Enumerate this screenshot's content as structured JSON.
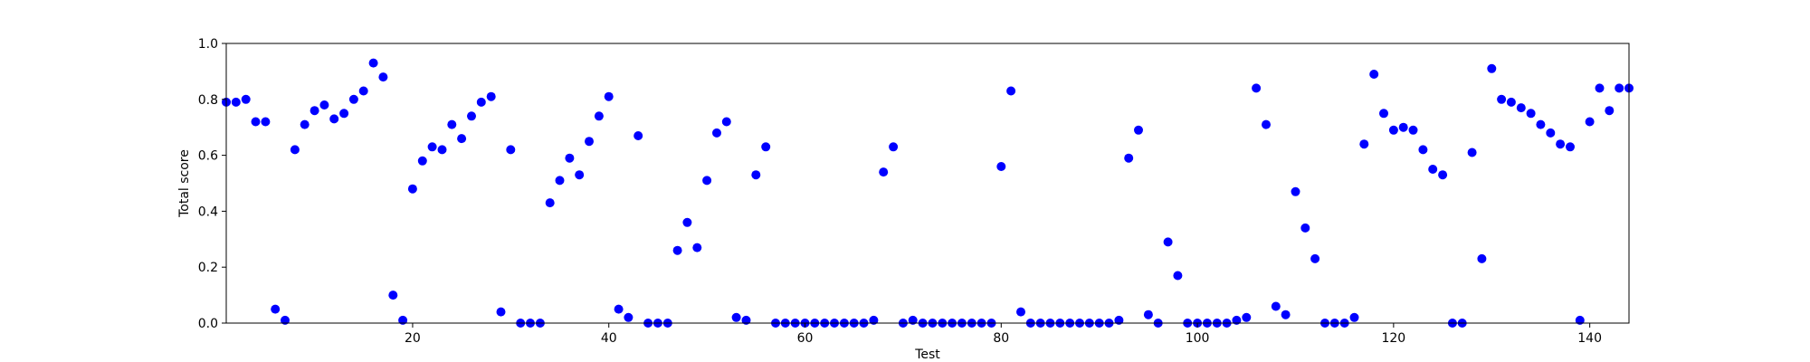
{
  "chart_data": {
    "type": "scatter",
    "title": "",
    "xlabel": "Test",
    "ylabel": "Total score",
    "xlim": [
      1,
      144
    ],
    "ylim": [
      0,
      1.0
    ],
    "xticks": [
      20,
      40,
      60,
      80,
      100,
      120,
      140
    ],
    "yticks": [
      0.0,
      0.2,
      0.4,
      0.6,
      0.8,
      1.0
    ],
    "xtick_labels": [
      "20",
      "40",
      "60",
      "80",
      "100",
      "120",
      "140"
    ],
    "ytick_labels": [
      "0.0",
      "0.2",
      "0.4",
      "0.6",
      "0.8",
      "1.0"
    ],
    "grid": false,
    "marker_color": "#0000ff",
    "x": [
      1,
      2,
      3,
      4,
      5,
      6,
      7,
      8,
      9,
      10,
      11,
      12,
      13,
      14,
      15,
      16,
      17,
      18,
      19,
      20,
      21,
      22,
      23,
      24,
      25,
      26,
      27,
      28,
      29,
      30,
      31,
      32,
      33,
      34,
      35,
      36,
      37,
      38,
      39,
      40,
      41,
      42,
      43,
      44,
      45,
      46,
      47,
      48,
      49,
      50,
      51,
      52,
      53,
      54,
      55,
      56,
      57,
      58,
      59,
      60,
      61,
      62,
      63,
      64,
      65,
      66,
      67,
      68,
      69,
      70,
      71,
      72,
      73,
      74,
      75,
      76,
      77,
      78,
      79,
      80,
      81,
      82,
      83,
      84,
      85,
      86,
      87,
      88,
      89,
      90,
      91,
      92,
      93,
      94,
      95,
      96,
      97,
      98,
      99,
      100,
      101,
      102,
      103,
      104,
      105,
      106,
      107,
      108,
      109,
      110,
      111,
      112,
      113,
      114,
      115,
      116,
      117,
      118,
      119,
      120,
      121,
      122,
      123,
      124,
      125,
      126,
      127,
      128,
      129,
      130,
      131,
      132,
      133,
      134,
      135,
      136,
      137,
      138,
      139,
      140,
      141,
      142,
      143,
      144
    ],
    "y": [
      0.79,
      0.79,
      0.8,
      0.72,
      0.72,
      0.05,
      0.01,
      0.62,
      0.71,
      0.76,
      0.78,
      0.73,
      0.75,
      0.8,
      0.83,
      0.93,
      0.88,
      0.1,
      0.01,
      0.48,
      0.58,
      0.63,
      0.62,
      0.71,
      0.66,
      0.74,
      0.79,
      0.81,
      0.04,
      0.62,
      0.0,
      0.0,
      0.0,
      0.43,
      0.51,
      0.59,
      0.53,
      0.65,
      0.74,
      0.81,
      0.05,
      0.02,
      0.67,
      0.0,
      0.0,
      0.0,
      0.26,
      0.36,
      0.27,
      0.51,
      0.68,
      0.72,
      0.02,
      0.01,
      0.53,
      0.63,
      0.0,
      0.0,
      0.0,
      0.0,
      0.0,
      0.0,
      0.0,
      0.0,
      0.0,
      0.0,
      0.01,
      0.54,
      0.63,
      0.0,
      0.01,
      0.0,
      0.0,
      0.0,
      0.0,
      0.0,
      0.0,
      0.0,
      0.0,
      0.56,
      0.83,
      0.04,
      0.0,
      0.0,
      0.0,
      0.0,
      0.0,
      0.0,
      0.0,
      0.0,
      0.0,
      0.01,
      0.59,
      0.69,
      0.03,
      0.0,
      0.29,
      0.17,
      0.0,
      0.0,
      0.0,
      0.0,
      0.0,
      0.01,
      0.02,
      0.84,
      0.71,
      0.06,
      0.03,
      0.47,
      0.34,
      0.23,
      0.0,
      0.0,
      0.0,
      0.02,
      0.64,
      0.89,
      0.75,
      0.69,
      0.7,
      0.69,
      0.62,
      0.55,
      0.53,
      0.0,
      0.0,
      0.61,
      0.23,
      0.91,
      0.8,
      0.79,
      0.77,
      0.75,
      0.71,
      0.68,
      0.64,
      0.63,
      0.01,
      0.72,
      0.84,
      0.76,
      0.84,
      0.84
    ]
  }
}
